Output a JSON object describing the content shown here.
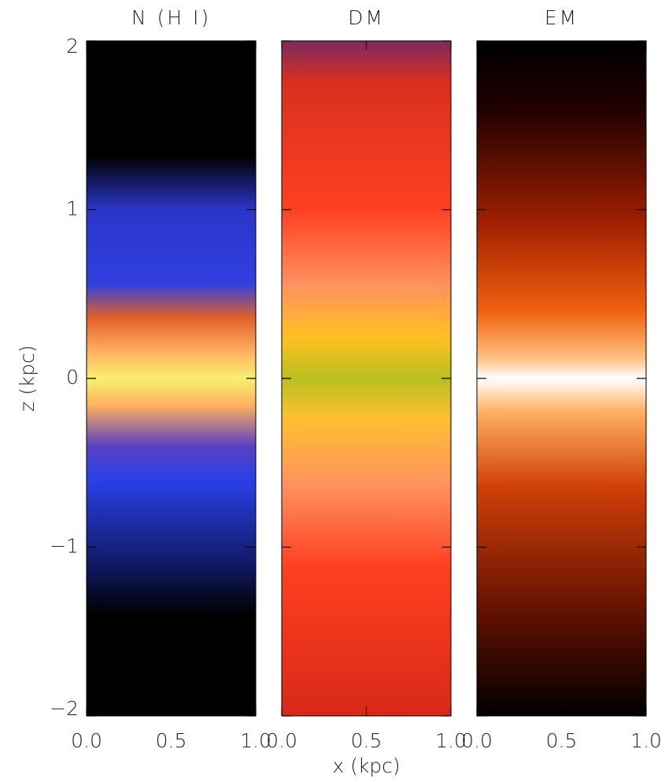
{
  "chart_data": [
    {
      "type": "image",
      "title": "N (H I)",
      "ylabel": "z (kpc)",
      "xlim": [
        0,
        1
      ],
      "xticks": [
        {
          "value": 0,
          "label": "0.0"
        },
        0.5,
        {
          "value": 1,
          "label": "1.0"
        }
      ],
      "ylim": [
        -2,
        2
      ],
      "yticks": [
        {
          "value": -2,
          "label": "−2"
        },
        {
          "value": -1,
          "label": "−1"
        },
        0,
        1,
        2
      ]
    },
    {
      "type": "image",
      "title": "DM",
      "xlabel": "x (kpc)",
      "xlim": [
        0,
        1
      ],
      "xticks": [
        {
          "value": 0,
          "label": "0.0"
        },
        0.5,
        {
          "value": 1,
          "label": "1.0"
        }
      ],
      "ylim": [
        -2,
        2
      ]
    },
    {
      "type": "image",
      "title": "EM",
      "xlim": [
        0,
        1
      ],
      "xticks": [
        {
          "value": 0,
          "label": "0.0"
        },
        0.5,
        {
          "value": 1,
          "label": "1.0"
        }
      ],
      "ylim": [
        -2,
        2
      ]
    }
  ]
}
